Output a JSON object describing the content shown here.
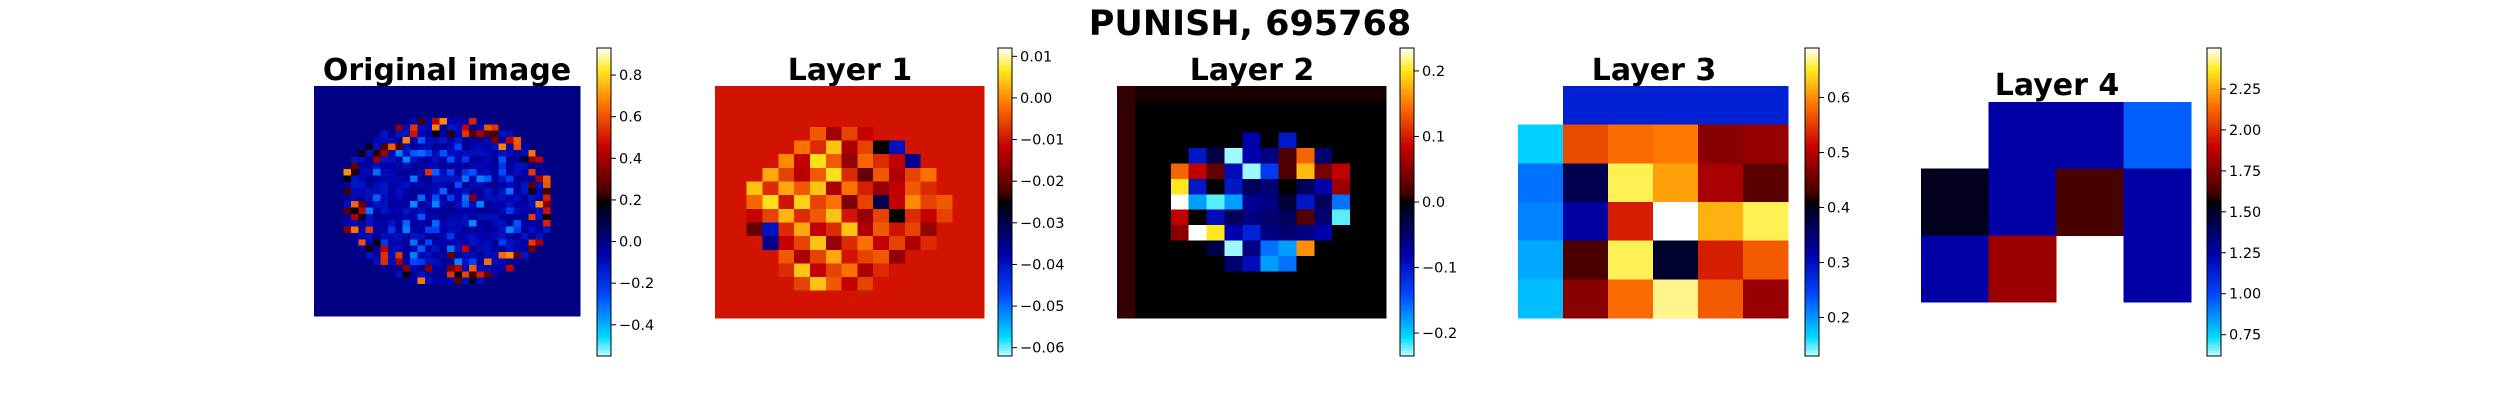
{
  "figure": {
    "title": "PUNISH, 695768",
    "panels": [
      {
        "title": "Original image",
        "cb_ticks": [
          "0.8",
          "0.6",
          "0.4",
          "0.2",
          "0.0",
          "−0.2",
          "−0.4"
        ]
      },
      {
        "title": "Layer 1",
        "cb_ticks": [
          "0.01",
          "0.00",
          "−0.01",
          "−0.02",
          "−0.03",
          "−0.04",
          "−0.05",
          "−0.06"
        ]
      },
      {
        "title": "Layer 2",
        "cb_ticks": [
          "0.2",
          "0.1",
          "0.0",
          "−0.1",
          "−0.2"
        ]
      },
      {
        "title": "Layer 3",
        "cb_ticks": [
          "0.6",
          "0.5",
          "0.4",
          "0.3",
          "0.2"
        ]
      },
      {
        "title": "Layer 4",
        "cb_ticks": [
          "2.25",
          "2.00",
          "1.75",
          "1.50",
          "1.25",
          "1.00",
          "0.75"
        ]
      }
    ]
  },
  "chart_data": [
    {
      "type": "heatmap",
      "title": "Original image",
      "colormap": "flag-like (cyan-blue-black-red-yellow-white)",
      "color_range": [
        -0.55,
        0.93
      ],
      "colorbar_ticks": [
        0.8,
        0.6,
        0.4,
        0.2,
        0.0,
        -0.2,
        -0.4
      ],
      "rows": 36,
      "cols": 36,
      "background_value": 0.0,
      "description_values": "Noisy circular brain-slice texture centered in frame; mostly values near 0 to -0.1 with scattered positive (0.2–0.6) pixels around the rim."
    },
    {
      "type": "heatmap",
      "title": "Layer 1",
      "color_range": [
        -0.062,
        0.012
      ],
      "colorbar_ticks": [
        0.01,
        0.0,
        -0.01,
        -0.02,
        -0.03,
        -0.04,
        -0.05,
        -0.06
      ],
      "rows": 17,
      "cols": 17,
      "background_value": -0.01,
      "grid": [
        [
          -0.01,
          -0.01,
          -0.01,
          -0.01,
          -0.01,
          -0.01,
          -0.01,
          -0.01,
          -0.01,
          -0.01,
          -0.01,
          -0.01,
          -0.01,
          -0.01,
          -0.01,
          -0.01,
          -0.01
        ],
        [
          -0.01,
          -0.01,
          -0.01,
          -0.01,
          -0.01,
          -0.01,
          -0.01,
          -0.01,
          -0.01,
          -0.01,
          -0.01,
          -0.01,
          -0.01,
          -0.01,
          -0.01,
          -0.01,
          -0.01
        ],
        [
          -0.01,
          -0.01,
          -0.01,
          -0.01,
          -0.01,
          -0.01,
          -0.01,
          -0.01,
          -0.01,
          -0.01,
          -0.01,
          -0.01,
          -0.01,
          -0.01,
          -0.01,
          -0.01,
          -0.01
        ],
        [
          -0.01,
          -0.01,
          -0.01,
          -0.01,
          -0.01,
          -0.01,
          -0.004,
          -0.015,
          -0.006,
          -0.012,
          -0.01,
          -0.01,
          -0.01,
          -0.01,
          -0.01,
          -0.01,
          -0.01
        ],
        [
          -0.01,
          -0.01,
          -0.01,
          -0.01,
          -0.01,
          -0.002,
          -0.008,
          0.004,
          -0.014,
          -0.006,
          -0.025,
          -0.04,
          -0.01,
          -0.01,
          -0.01,
          -0.01,
          -0.01
        ],
        [
          -0.01,
          -0.01,
          -0.01,
          -0.01,
          0.0,
          -0.012,
          0.006,
          -0.004,
          -0.016,
          -0.003,
          -0.008,
          -0.012,
          -0.035,
          -0.01,
          -0.01,
          -0.01,
          -0.01
        ],
        [
          -0.01,
          -0.01,
          -0.01,
          0.002,
          -0.006,
          -0.013,
          -0.004,
          0.006,
          -0.008,
          -0.02,
          -0.004,
          -0.014,
          -0.006,
          -0.002,
          -0.01,
          -0.01,
          -0.01
        ],
        [
          -0.01,
          -0.01,
          0.004,
          -0.008,
          0.002,
          -0.004,
          0.004,
          -0.014,
          -0.002,
          -0.009,
          -0.016,
          -0.012,
          -0.004,
          -0.008,
          -0.01,
          -0.01,
          -0.01
        ],
        [
          -0.01,
          -0.01,
          -0.003,
          0.006,
          -0.01,
          0.005,
          -0.006,
          -0.002,
          -0.018,
          -0.006,
          -0.03,
          -0.012,
          0.0,
          -0.006,
          -0.004,
          -0.01,
          -0.01
        ],
        [
          -0.01,
          -0.01,
          -0.012,
          -0.006,
          0.003,
          -0.008,
          -0.004,
          0.004,
          -0.01,
          -0.016,
          -0.006,
          -0.025,
          -0.008,
          -0.012,
          -0.006,
          -0.01,
          -0.01
        ],
        [
          -0.01,
          -0.01,
          -0.02,
          -0.04,
          -0.008,
          0.002,
          -0.012,
          -0.008,
          0.004,
          -0.014,
          -0.004,
          -0.01,
          -0.006,
          -0.016,
          -0.01,
          -0.01,
          -0.01
        ],
        [
          -0.01,
          -0.01,
          -0.01,
          -0.035,
          -0.012,
          -0.006,
          0.004,
          -0.016,
          -0.008,
          -0.002,
          -0.012,
          -0.006,
          -0.014,
          -0.008,
          -0.01,
          -0.01,
          -0.01
        ],
        [
          -0.01,
          -0.01,
          -0.01,
          -0.01,
          -0.004,
          -0.014,
          -0.006,
          0.002,
          -0.01,
          -0.006,
          -0.004,
          -0.016,
          -0.01,
          -0.01,
          -0.01,
          -0.01,
          -0.01
        ],
        [
          -0.01,
          -0.01,
          -0.01,
          -0.01,
          -0.008,
          0.004,
          -0.012,
          -0.006,
          -0.002,
          -0.014,
          -0.008,
          -0.01,
          -0.01,
          -0.01,
          -0.01,
          -0.01,
          -0.01
        ],
        [
          -0.01,
          -0.01,
          -0.01,
          -0.01,
          -0.01,
          -0.006,
          0.004,
          -0.004,
          -0.012,
          -0.006,
          -0.01,
          -0.01,
          -0.01,
          -0.01,
          -0.01,
          -0.01,
          -0.01
        ],
        [
          -0.01,
          -0.01,
          -0.01,
          -0.01,
          -0.01,
          -0.01,
          -0.01,
          -0.01,
          -0.01,
          -0.01,
          -0.01,
          -0.01,
          -0.01,
          -0.01,
          -0.01,
          -0.01,
          -0.01
        ],
        [
          -0.01,
          -0.01,
          -0.01,
          -0.01,
          -0.01,
          -0.01,
          -0.01,
          -0.01,
          -0.01,
          -0.01,
          -0.01,
          -0.01,
          -0.01,
          -0.01,
          -0.01,
          -0.01,
          -0.01
        ]
      ]
    },
    {
      "type": "heatmap",
      "title": "Layer 2",
      "color_range": [
        -0.235,
        0.235
      ],
      "colorbar_ticks": [
        0.2,
        0.1,
        0.0,
        -0.1,
        -0.2
      ],
      "rows": 15,
      "cols": 15,
      "grid": [
        [
          0.01,
          0.005,
          0.005,
          0.005,
          0.005,
          0.005,
          0.005,
          0.005,
          0.005,
          0.005,
          0.005,
          0.005,
          0.005,
          0.005,
          0.005
        ],
        [
          0.01,
          0.0,
          0.0,
          0.0,
          0.0,
          0.0,
          0.0,
          0.0,
          0.0,
          0.0,
          0.0,
          0.0,
          0.0,
          0.0,
          0.0
        ],
        [
          0.01,
          0.0,
          0.0,
          0.0,
          0.0,
          0.0,
          0.0,
          0.0,
          0.0,
          0.0,
          0.0,
          0.0,
          0.0,
          0.0,
          0.0
        ],
        [
          0.01,
          0.0,
          0.0,
          0.0,
          0.0,
          0.0,
          0.0,
          -0.08,
          0.0,
          -0.1,
          0.0,
          0.0,
          0.0,
          0.0,
          0.0
        ],
        [
          0.01,
          0.0,
          0.0,
          0.0,
          -0.1,
          -0.03,
          -0.23,
          -0.08,
          -0.06,
          0.02,
          0.14,
          -0.05,
          0.0,
          0.0,
          0.0
        ],
        [
          0.01,
          0.0,
          0.0,
          0.14,
          0.08,
          0.03,
          -0.09,
          -0.23,
          -0.13,
          0.02,
          0.18,
          0.04,
          0.08,
          0.0,
          0.0
        ],
        [
          0.01,
          0.0,
          0.0,
          0.2,
          -0.1,
          0.0,
          -0.1,
          -0.04,
          -0.05,
          0.0,
          -0.04,
          -0.08,
          0.06,
          0.0,
          0.0
        ],
        [
          0.01,
          0.0,
          0.0,
          0.24,
          -0.18,
          -0.22,
          -0.18,
          -0.07,
          -0.06,
          -0.02,
          -0.1,
          -0.04,
          -0.16,
          0.0,
          0.0
        ],
        [
          0.01,
          0.0,
          0.0,
          0.08,
          0.0,
          -0.09,
          -0.04,
          -0.06,
          -0.05,
          -0.04,
          0.02,
          -0.05,
          -0.22,
          0.0,
          0.0
        ],
        [
          0.01,
          0.0,
          0.0,
          0.05,
          0.24,
          0.2,
          -0.08,
          -0.11,
          -0.06,
          -0.05,
          -0.06,
          -0.08,
          0.0,
          0.0,
          0.0
        ],
        [
          0.01,
          0.0,
          0.0,
          0.0,
          0.0,
          -0.03,
          -0.23,
          -0.06,
          -0.16,
          -0.18,
          0.16,
          0.0,
          0.0,
          0.0,
          0.0
        ],
        [
          0.01,
          0.0,
          0.0,
          0.0,
          0.0,
          0.0,
          -0.05,
          -0.09,
          -0.18,
          -0.16,
          0.0,
          0.0,
          0.0,
          0.0,
          0.0
        ],
        [
          0.01,
          0.0,
          0.0,
          0.0,
          0.0,
          0.0,
          0.0,
          0.0,
          0.0,
          0.0,
          0.0,
          0.0,
          0.0,
          0.0,
          0.0
        ],
        [
          0.01,
          0.0,
          0.0,
          0.0,
          0.0,
          0.0,
          0.0,
          0.0,
          0.0,
          0.0,
          0.0,
          0.0,
          0.0,
          0.0,
          0.0
        ],
        [
          0.01,
          0.0,
          0.0,
          0.0,
          0.0,
          0.0,
          0.0,
          0.0,
          0.0,
          0.0,
          0.0,
          0.0,
          0.0,
          0.0,
          0.0
        ]
      ]
    },
    {
      "type": "heatmap",
      "title": "Layer 3",
      "color_range": [
        0.13,
        0.69
      ],
      "colorbar_ticks": [
        0.6,
        0.5,
        0.4,
        0.3,
        0.2
      ],
      "rows": 6,
      "cols": 6,
      "grid": [
        [
          null,
          0.28,
          0.28,
          0.28,
          0.28,
          0.28
        ],
        [
          0.17,
          0.56,
          0.58,
          0.59,
          0.47,
          0.48
        ],
        [
          0.22,
          0.37,
          0.66,
          0.61,
          0.49,
          0.44
        ],
        [
          0.21,
          0.32,
          0.53,
          0.69,
          0.62,
          0.66
        ],
        [
          0.19,
          0.43,
          0.66,
          0.39,
          0.53,
          0.57
        ],
        [
          0.18,
          0.47,
          0.58,
          0.67,
          0.57,
          0.48
        ]
      ]
    },
    {
      "type": "heatmap",
      "title": "Layer 4",
      "color_range": [
        0.62,
        2.5
      ],
      "colorbar_ticks": [
        2.25,
        2.0,
        1.75,
        1.5,
        1.25,
        1.0,
        0.75
      ],
      "rows": 3,
      "cols": 4,
      "grid": [
        [
          null,
          1.25,
          1.25,
          0.95
        ],
        [
          1.52,
          1.25,
          1.62,
          1.25
        ],
        [
          1.25,
          1.8,
          null,
          1.25
        ]
      ]
    }
  ]
}
